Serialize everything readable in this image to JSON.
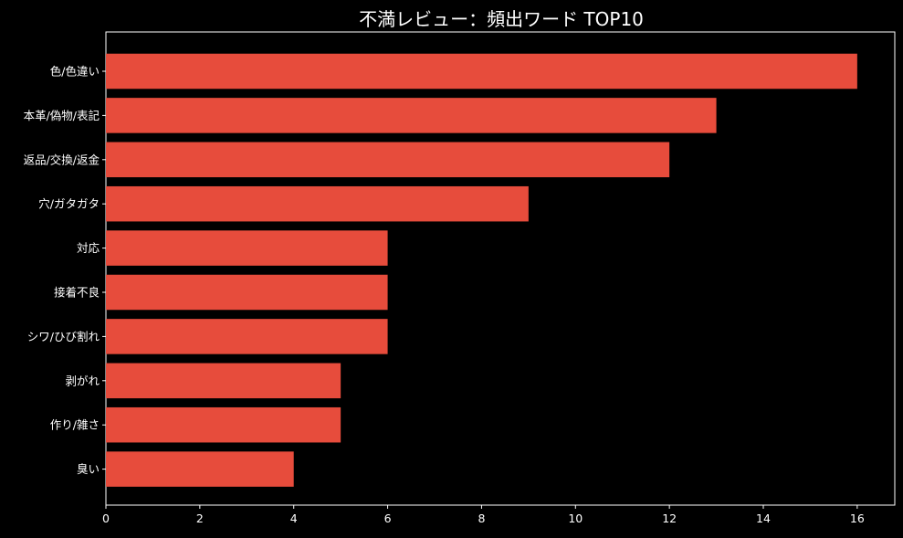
{
  "chart_data": {
    "type": "bar",
    "orientation": "horizontal",
    "title": "不満レビュー：頻出ワード TOP10",
    "categories": [
      "色/色違い",
      "本革/偽物/表記",
      "返品/交換/返金",
      "穴/ガタガタ",
      "対応",
      "接着不良",
      "シワ/ひび割れ",
      "剥がれ",
      "作り/雑さ",
      "臭い"
    ],
    "values": [
      16,
      13,
      12,
      9,
      6,
      6,
      6,
      5,
      5,
      4
    ],
    "xlabel": "",
    "ylabel": "",
    "xlim": [
      0,
      16.8
    ],
    "xticks": [
      0,
      2,
      4,
      6,
      8,
      10,
      12,
      14,
      16
    ],
    "grid": false,
    "bar_color": "#e74c3c",
    "background": "#000000",
    "foreground": "#ffffff"
  }
}
